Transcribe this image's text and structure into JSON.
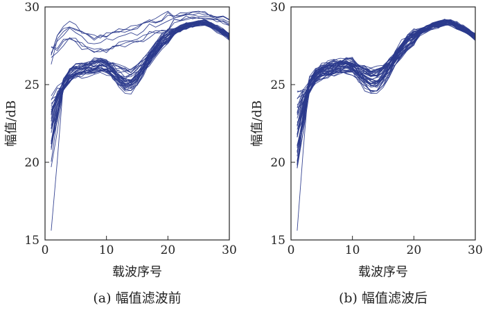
{
  "chart_data": [
    {
      "type": "line",
      "caption": "(a) 幅值滤波前",
      "xlabel": "载波序号",
      "ylabel": "幅值/dB",
      "xlim": [
        0,
        30
      ],
      "ylim": [
        15,
        30
      ],
      "xticks": [
        0,
        10,
        20,
        30
      ],
      "yticks": [
        15,
        20,
        25,
        30
      ],
      "grid": false,
      "line_color": "#2b3a8c",
      "series_count": 40,
      "x": [
        1,
        2,
        3,
        4,
        5,
        6,
        7,
        8,
        9,
        10,
        11,
        12,
        13,
        14,
        15,
        16,
        17,
        18,
        19,
        20,
        21,
        22,
        23,
        24,
        25,
        26,
        27,
        28,
        29,
        30
      ],
      "typical_profile": [
        21.5,
        23.8,
        25.0,
        25.6,
        25.9,
        26.0,
        26.1,
        26.2,
        26.3,
        26.2,
        26.0,
        25.8,
        25.6,
        25.6,
        25.9,
        26.3,
        26.8,
        27.3,
        27.8,
        28.1,
        28.4,
        28.6,
        28.8,
        28.9,
        29.0,
        29.0,
        28.8,
        28.6,
        28.4,
        28.1
      ],
      "outlier_profile": [
        27.3,
        27.8,
        28.3,
        28.6,
        28.4,
        28.1,
        27.9,
        27.8,
        27.8,
        27.9,
        28.0,
        28.1,
        28.2,
        28.3,
        28.4,
        28.6,
        28.8,
        28.9,
        29.0,
        29.2,
        29.3,
        29.4,
        29.5,
        29.5,
        29.5,
        29.5,
        29.4,
        29.3,
        29.2,
        29.0
      ],
      "outlier_count": 7,
      "first_point_range": [
        15.6,
        27.7
      ]
    },
    {
      "type": "line",
      "caption": "(b) 幅值滤波后",
      "xlabel": "载波序号",
      "ylabel": "幅值/dB",
      "xlim": [
        0,
        30
      ],
      "ylim": [
        15,
        30
      ],
      "xticks": [
        0,
        10,
        20,
        30
      ],
      "yticks": [
        15,
        20,
        25,
        30
      ],
      "grid": false,
      "line_color": "#2b3a8c",
      "series_count": 40,
      "x": [
        1,
        2,
        3,
        4,
        5,
        6,
        7,
        8,
        9,
        10,
        11,
        12,
        13,
        14,
        15,
        16,
        17,
        18,
        19,
        20,
        21,
        22,
        23,
        24,
        25,
        26,
        27,
        28,
        29,
        30
      ],
      "typical_profile": [
        21.5,
        23.8,
        25.0,
        25.6,
        25.9,
        26.0,
        26.1,
        26.2,
        26.3,
        26.2,
        26.0,
        25.8,
        25.6,
        25.6,
        25.9,
        26.3,
        26.8,
        27.3,
        27.8,
        28.1,
        28.4,
        28.6,
        28.8,
        28.9,
        29.0,
        29.0,
        28.8,
        28.6,
        28.4,
        28.1
      ],
      "outlier_count": 0,
      "first_point_range": [
        15.6,
        24.6
      ]
    }
  ]
}
